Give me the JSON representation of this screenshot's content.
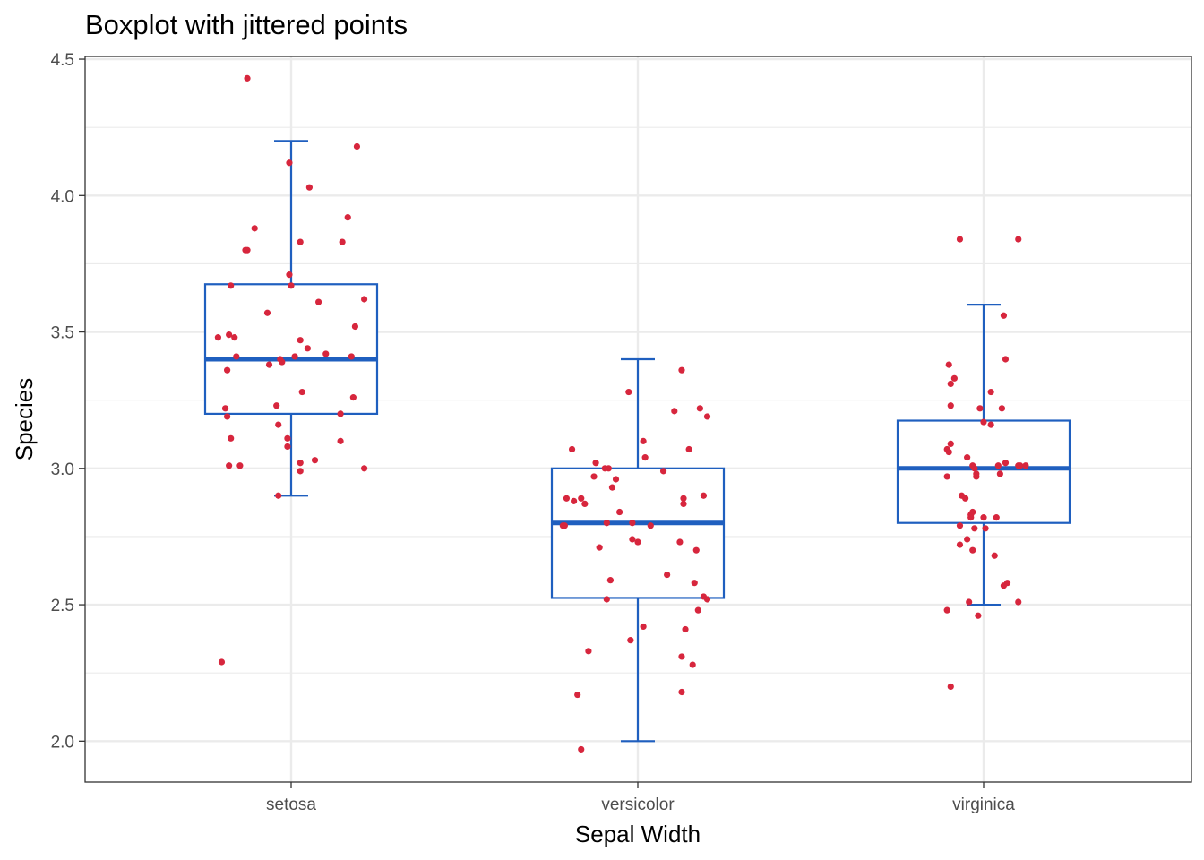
{
  "chart_data": {
    "type": "boxplot",
    "title": "Boxplot with jittered points",
    "xlabel": "Sepal Width",
    "ylabel": "Species",
    "categories": [
      "setosa",
      "versicolor",
      "virginica"
    ],
    "ylim": [
      1.85,
      4.51
    ],
    "y_ticks": [
      2.0,
      2.5,
      3.0,
      3.5,
      4.0,
      4.5
    ],
    "y_tick_labels": [
      "2.0",
      "2.5",
      "3.0",
      "3.5",
      "4.0",
      "4.5"
    ],
    "grid": true,
    "legend": "none",
    "colors": {
      "box": "#1f5fbf",
      "median": "#1f5fbf",
      "points": "#d7263d",
      "grid": "#ebebeb",
      "panel_border": "#333333"
    },
    "boxes": [
      {
        "category": "setosa",
        "whisker_low": 2.9,
        "q1": 3.2,
        "median": 3.4,
        "q3": 3.675,
        "whisker_high": 4.2
      },
      {
        "category": "versicolor",
        "whisker_low": 2.0,
        "q1": 2.525,
        "median": 2.8,
        "q3": 3.0,
        "whisker_high": 3.4
      },
      {
        "category": "virginica",
        "whisker_low": 2.5,
        "q1": 2.8,
        "median": 3.0,
        "q3": 3.175,
        "whisker_high": 3.6
      }
    ],
    "points": [
      {
        "category": "setosa",
        "values": [
          4.43,
          4.18,
          4.12,
          4.03,
          3.92,
          3.88,
          3.83,
          3.83,
          3.8,
          3.8,
          3.71,
          3.67,
          3.67,
          3.62,
          3.61,
          3.57,
          3.52,
          3.49,
          3.48,
          3.48,
          3.47,
          3.44,
          3.42,
          3.41,
          3.41,
          3.41,
          3.4,
          3.39,
          3.38,
          3.36,
          3.28,
          3.26,
          3.23,
          3.22,
          3.2,
          3.19,
          3.16,
          3.11,
          3.11,
          3.1,
          3.08,
          3.03,
          3.02,
          3.01,
          3.01,
          3.0,
          2.99,
          2.9,
          2.29
        ],
        "jitter": [
          -0.24,
          0.36,
          -0.01,
          0.1,
          0.31,
          -0.2,
          0.05,
          0.28,
          -0.24,
          -0.25,
          -0.01,
          -0.33,
          0.0,
          0.4,
          0.15,
          -0.13,
          0.35,
          -0.34,
          -0.31,
          -0.4,
          0.05,
          0.09,
          0.19,
          -0.3,
          0.02,
          0.33,
          -0.06,
          -0.05,
          -0.12,
          -0.35,
          0.06,
          0.34,
          -0.08,
          -0.36,
          0.27,
          -0.35,
          -0.07,
          -0.33,
          -0.02,
          0.27,
          -0.02,
          0.13,
          0.05,
          -0.34,
          -0.28,
          0.4,
          0.05,
          -0.07,
          -0.38
        ]
      },
      {
        "category": "versicolor",
        "values": [
          3.36,
          3.28,
          3.22,
          3.21,
          3.19,
          3.1,
          3.07,
          3.07,
          3.04,
          3.02,
          3.0,
          3.0,
          2.99,
          2.97,
          2.96,
          2.93,
          2.9,
          2.89,
          2.89,
          2.89,
          2.88,
          2.87,
          2.87,
          2.84,
          2.8,
          2.8,
          2.79,
          2.79,
          2.79,
          2.74,
          2.73,
          2.73,
          2.71,
          2.7,
          2.61,
          2.59,
          2.58,
          2.53,
          2.52,
          2.52,
          2.48,
          2.42,
          2.41,
          2.37,
          2.33,
          2.31,
          2.28,
          2.18,
          2.17,
          1.97
        ],
        "jitter": [
          0.24,
          -0.05,
          0.34,
          0.2,
          0.38,
          0.03,
          -0.36,
          0.28,
          0.04,
          -0.23,
          -0.18,
          -0.16,
          0.14,
          -0.24,
          -0.12,
          -0.14,
          0.36,
          -0.39,
          0.25,
          -0.31,
          -0.35,
          -0.29,
          0.25,
          -0.1,
          -0.17,
          -0.03,
          -0.41,
          -0.4,
          0.07,
          -0.03,
          0.0,
          0.23,
          -0.21,
          0.32,
          0.16,
          -0.15,
          0.31,
          0.36,
          -0.17,
          0.38,
          0.33,
          0.03,
          0.26,
          -0.04,
          -0.27,
          0.24,
          0.3,
          0.24,
          -0.33,
          -0.31
        ]
      },
      {
        "category": "virginica",
        "values": [
          3.84,
          3.84,
          3.56,
          3.4,
          3.38,
          3.33,
          3.31,
          3.28,
          3.23,
          3.22,
          3.22,
          3.17,
          3.16,
          3.09,
          3.07,
          3.06,
          3.04,
          3.02,
          3.01,
          3.01,
          3.01,
          3.01,
          3.01,
          3.0,
          2.98,
          2.98,
          2.97,
          2.97,
          2.9,
          2.89,
          2.84,
          2.83,
          2.82,
          2.82,
          2.82,
          2.79,
          2.78,
          2.78,
          2.74,
          2.72,
          2.7,
          2.68,
          2.58,
          2.57,
          2.51,
          2.51,
          2.48,
          2.46,
          2.2
        ],
        "jitter": [
          -0.13,
          0.19,
          0.11,
          0.12,
          -0.19,
          -0.16,
          -0.18,
          0.04,
          -0.18,
          -0.02,
          0.1,
          0.0,
          0.04,
          -0.18,
          -0.2,
          -0.19,
          -0.09,
          0.12,
          -0.06,
          0.08,
          0.23,
          0.19,
          0.2,
          -0.05,
          -0.04,
          0.09,
          -0.2,
          -0.04,
          -0.12,
          -0.1,
          -0.06,
          -0.07,
          0.0,
          -0.07,
          0.07,
          -0.13,
          -0.05,
          0.01,
          -0.09,
          -0.13,
          -0.06,
          0.06,
          0.13,
          0.11,
          -0.08,
          0.19,
          -0.2,
          -0.03,
          -0.18
        ]
      }
    ]
  }
}
